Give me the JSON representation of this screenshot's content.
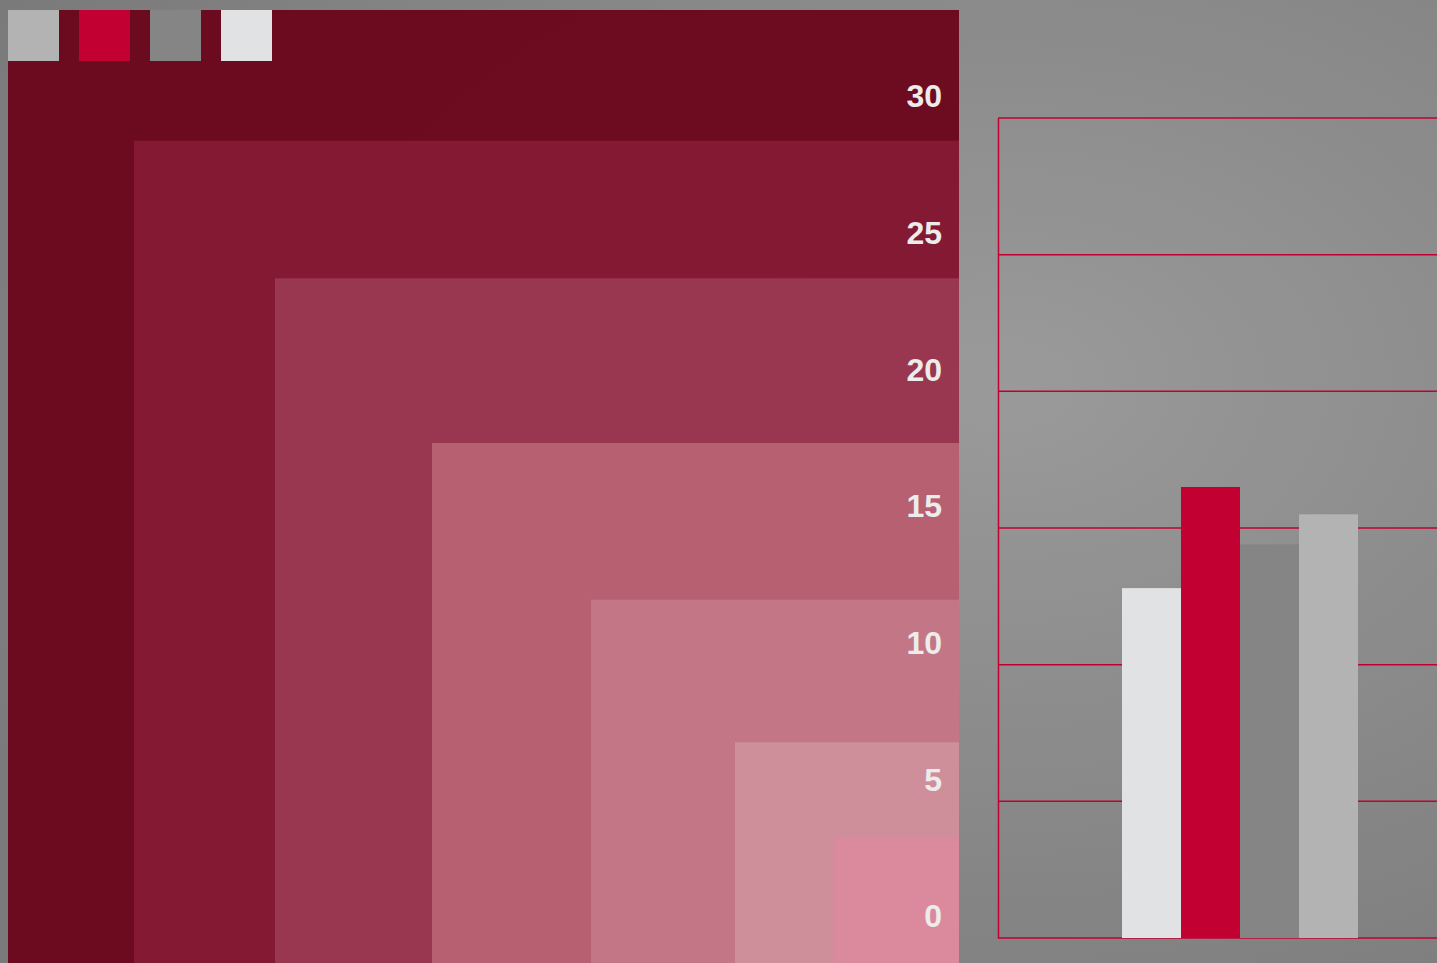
{
  "chart_data": {
    "type": "bar",
    "categories": [
      null,
      null,
      null,
      null
    ],
    "values": [
      12.8,
      16.5,
      14.4,
      15.5
    ],
    "colors": [
      "#e1e2e4",
      "#c20032",
      "#858585",
      "#b3b3b4"
    ],
    "ylim": [
      0,
      30
    ],
    "yticks": [
      0,
      5,
      10,
      15,
      20,
      25,
      30
    ],
    "grid": true,
    "legend": "top-left"
  }
}
